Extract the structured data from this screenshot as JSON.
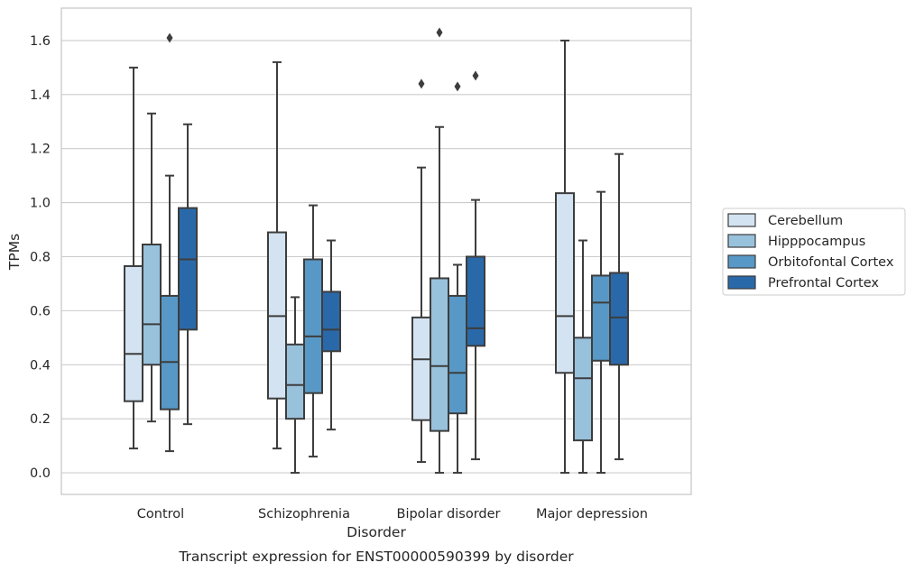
{
  "chart_data": {
    "type": "box",
    "caption": "Transcript expression for ENST00000590399 by disorder",
    "xlabel": "Disorder",
    "ylabel": "TPMs",
    "ylim": [
      -0.08,
      1.72
    ],
    "yticks": [
      0.0,
      0.2,
      0.4,
      0.6,
      0.8,
      1.0,
      1.2,
      1.4,
      1.6
    ],
    "ytick_labels": [
      "0.0",
      "0.2",
      "0.4",
      "0.6",
      "0.8",
      "1.0",
      "1.2",
      "1.4",
      "1.6"
    ],
    "grid": "horizontal",
    "legend_position": "right",
    "categories": [
      "Control",
      "Schizophrenia",
      "Bipolar disorder",
      "Major depression"
    ],
    "series": [
      {
        "name": "Cerebellum",
        "color": "#d4e3f1",
        "boxes": [
          {
            "whisker_low": 0.09,
            "q1": 0.265,
            "median": 0.44,
            "q3": 0.765,
            "whisker_high": 1.5,
            "outliers": []
          },
          {
            "whisker_low": 0.09,
            "q1": 0.275,
            "median": 0.58,
            "q3": 0.89,
            "whisker_high": 1.52,
            "outliers": []
          },
          {
            "whisker_low": 0.04,
            "q1": 0.195,
            "median": 0.42,
            "q3": 0.575,
            "whisker_high": 1.13,
            "outliers": [
              1.44
            ]
          },
          {
            "whisker_low": 0.0,
            "q1": 0.37,
            "median": 0.58,
            "q3": 1.035,
            "whisker_high": 1.6,
            "outliers": []
          }
        ]
      },
      {
        "name": "Hipppocampus",
        "color": "#98c1dc",
        "boxes": [
          {
            "whisker_low": 0.19,
            "q1": 0.4,
            "median": 0.55,
            "q3": 0.845,
            "whisker_high": 1.33,
            "outliers": []
          },
          {
            "whisker_low": 0.0,
            "q1": 0.2,
            "median": 0.325,
            "q3": 0.475,
            "whisker_high": 0.65,
            "outliers": []
          },
          {
            "whisker_low": 0.0,
            "q1": 0.155,
            "median": 0.395,
            "q3": 0.72,
            "whisker_high": 1.28,
            "outliers": [
              1.63
            ]
          },
          {
            "whisker_low": 0.0,
            "q1": 0.12,
            "median": 0.35,
            "q3": 0.5,
            "whisker_high": 0.86,
            "outliers": []
          }
        ]
      },
      {
        "name": "Orbitofontal Cortex",
        "color": "#5898c6",
        "boxes": [
          {
            "whisker_low": 0.08,
            "q1": 0.235,
            "median": 0.41,
            "q3": 0.655,
            "whisker_high": 1.1,
            "outliers": [
              1.61
            ]
          },
          {
            "whisker_low": 0.06,
            "q1": 0.295,
            "median": 0.505,
            "q3": 0.79,
            "whisker_high": 0.99,
            "outliers": []
          },
          {
            "whisker_low": 0.0,
            "q1": 0.22,
            "median": 0.37,
            "q3": 0.655,
            "whisker_high": 0.77,
            "outliers": [
              1.43
            ]
          },
          {
            "whisker_low": 0.0,
            "q1": 0.415,
            "median": 0.63,
            "q3": 0.73,
            "whisker_high": 1.04,
            "outliers": []
          }
        ]
      },
      {
        "name": "Prefrontal Cortex",
        "color": "#2a69a9",
        "boxes": [
          {
            "whisker_low": 0.18,
            "q1": 0.53,
            "median": 0.79,
            "q3": 0.98,
            "whisker_high": 1.29,
            "outliers": []
          },
          {
            "whisker_low": 0.16,
            "q1": 0.45,
            "median": 0.53,
            "q3": 0.67,
            "whisker_high": 0.86,
            "outliers": []
          },
          {
            "whisker_low": 0.05,
            "q1": 0.47,
            "median": 0.535,
            "q3": 0.8,
            "whisker_high": 1.01,
            "outliers": [
              1.47
            ]
          },
          {
            "whisker_low": 0.05,
            "q1": 0.4,
            "median": 0.575,
            "q3": 0.74,
            "whisker_high": 1.18,
            "outliers": []
          }
        ]
      }
    ]
  }
}
